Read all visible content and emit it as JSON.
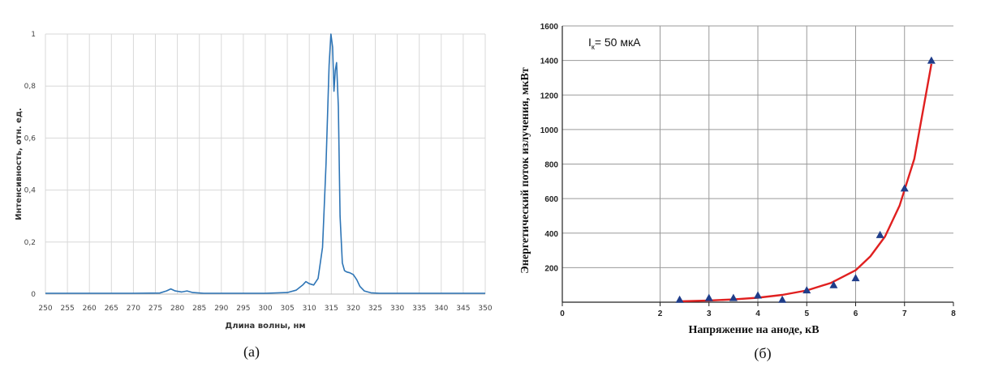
{
  "chart_data": [
    {
      "type": "line",
      "caption": "(a)",
      "xlabel": "Длина волны, нм",
      "ylabel": "Интенсивность, отн. ед.",
      "xlim": [
        250,
        350
      ],
      "ylim": [
        0,
        1
      ],
      "x_ticks": [
        "250",
        "255",
        "260",
        "265",
        "270",
        "275",
        "280",
        "285",
        "290",
        "295",
        "300",
        "305",
        "310",
        "315",
        "320",
        "325",
        "330",
        "335",
        "340",
        "345",
        "350"
      ],
      "y_ticks": [
        "0",
        "0,2",
        "0,4",
        "0,6",
        "0,8",
        "1"
      ],
      "grid": true,
      "color": "#2e75b6",
      "x": [
        250,
        270,
        276,
        277.5,
        278.5,
        279.5,
        281,
        282.2,
        283.5,
        286,
        300,
        305,
        307,
        308.5,
        309.2,
        310,
        311,
        312,
        313,
        313.8,
        314.5,
        314.9,
        315.3,
        315.6,
        315.9,
        316.2,
        316.6,
        317,
        317.5,
        318,
        318.5,
        319.2,
        320,
        320.8,
        321.5,
        322.5,
        324,
        326,
        350
      ],
      "y": [
        0.003,
        0.003,
        0.004,
        0.012,
        0.02,
        0.012,
        0.008,
        0.012,
        0.006,
        0.003,
        0.003,
        0.006,
        0.015,
        0.035,
        0.048,
        0.04,
        0.035,
        0.06,
        0.18,
        0.5,
        0.88,
        1.0,
        0.95,
        0.78,
        0.86,
        0.89,
        0.72,
        0.3,
        0.12,
        0.09,
        0.085,
        0.082,
        0.075,
        0.055,
        0.03,
        0.012,
        0.005,
        0.003,
        0.003
      ]
    },
    {
      "type": "scatter",
      "caption": "(б)",
      "annotation_main": "I",
      "annotation_sub": "к",
      "annotation_rest": "= 50 мкА",
      "xlabel": "Напряжение на аноде, кВ",
      "ylabel": "Энергетический поток излучения, мкВт",
      "xlim": [
        0,
        8
      ],
      "ylim": [
        0,
        1600
      ],
      "x_ticks": [
        "0",
        "2",
        "3",
        "4",
        "5",
        "6",
        "7",
        "8"
      ],
      "y_ticks": [
        "200",
        "400",
        "600",
        "800",
        "1000",
        "1200",
        "1400",
        "1600"
      ],
      "grid": true,
      "points_color": "#1f3d8a",
      "fit_color": "#e02020",
      "x": [
        2.4,
        3.0,
        3.5,
        4.0,
        4.5,
        5.0,
        5.55,
        6.0,
        6.5,
        7.0,
        7.55
      ],
      "y": [
        15,
        25,
        25,
        40,
        15,
        70,
        100,
        140,
        390,
        660,
        1400
      ],
      "fit_x": [
        2.4,
        3.0,
        3.5,
        4.0,
        4.5,
        5.0,
        5.5,
        6.0,
        6.3,
        6.6,
        6.9,
        7.2,
        7.55
      ],
      "fit_y": [
        5,
        10,
        16,
        26,
        42,
        68,
        112,
        185,
        265,
        380,
        560,
        830,
        1380
      ]
    }
  ]
}
